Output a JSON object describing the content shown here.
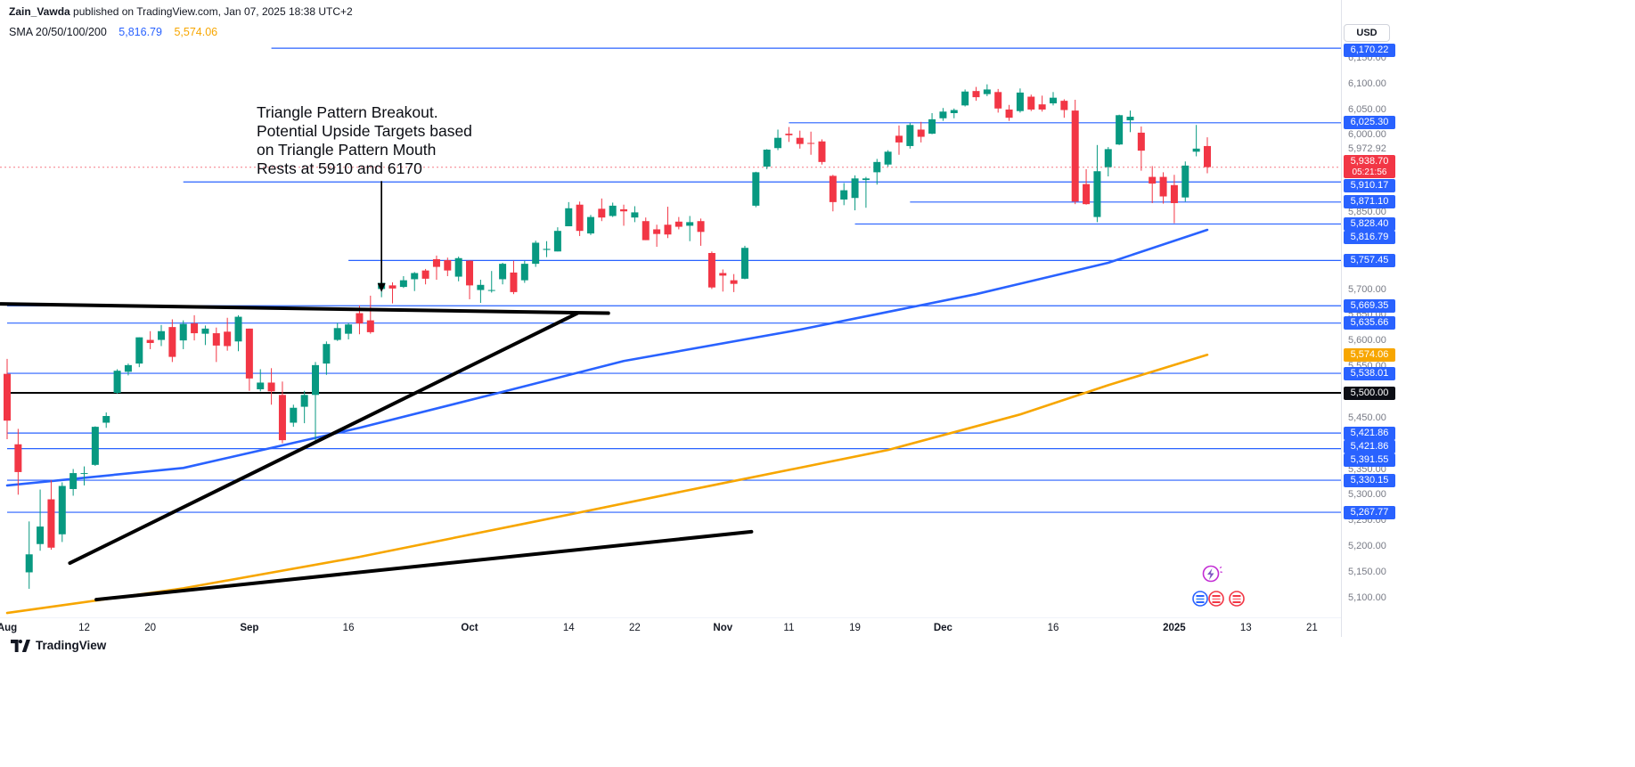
{
  "header": {
    "publisher_name": "Zain_Vawda",
    "publisher_rest": " published on TradingView.com, Jan 07, 2025 18:38 UTC+2",
    "currency_button": "USD"
  },
  "legend": {
    "indicator_label": "SMA 20/50/100/200",
    "value_blue": "5,816.79",
    "value_orange": "5,574.06"
  },
  "annotation": {
    "lines": [
      "Triangle Pattern Breakout.",
      "Potential Upside Targets based",
      "on Triangle Pattern Mouth",
      "Rests at 5910 and 6170"
    ]
  },
  "footer": {
    "brand": "TradingView"
  },
  "reactions": {
    "icons": [
      "lightning-reaction",
      "sticker-blue",
      "sticker-red-1",
      "sticker-red-2"
    ]
  },
  "chart_data": {
    "type": "candlestick",
    "currency": "USD",
    "ylim": [
      5086,
      6264
    ],
    "colors": {
      "up": "#089981",
      "down": "#f23645",
      "sma_fast": "#2962ff",
      "sma_slow": "#f7a600",
      "level": "#2962ff",
      "drawing": "#000000",
      "last_price": "#f23645"
    },
    "candles": [
      [
        5537,
        5566,
        5410,
        5446
      ],
      [
        5400,
        5430,
        5302,
        5346
      ],
      [
        5151,
        5250,
        5119,
        5186
      ],
      [
        5206,
        5312,
        5193,
        5240
      ],
      [
        5293,
        5330,
        5195,
        5199
      ],
      [
        5225,
        5326,
        5210,
        5319
      ],
      [
        5313,
        5352,
        5300,
        5344
      ],
      [
        5343,
        5357,
        5320,
        5344
      ],
      [
        5360,
        5435,
        5358,
        5434
      ],
      [
        5442,
        5462,
        5432,
        5455
      ],
      [
        5500,
        5546,
        5498,
        5543
      ],
      [
        5541,
        5557,
        5534,
        5554
      ],
      [
        5557,
        5608,
        5550,
        5608
      ],
      [
        5603,
        5620,
        5585,
        5597
      ],
      [
        5603,
        5632,
        5591,
        5620
      ],
      [
        5628,
        5643,
        5560,
        5570
      ],
      [
        5602,
        5641,
        5585,
        5634
      ],
      [
        5635,
        5651,
        5602,
        5616
      ],
      [
        5615,
        5631,
        5593,
        5625
      ],
      [
        5616,
        5627,
        5560,
        5592
      ],
      [
        5619,
        5646,
        5582,
        5591
      ],
      [
        5600,
        5651,
        5581,
        5648
      ],
      [
        5625,
        5625,
        5504,
        5528
      ],
      [
        5507,
        5546,
        5503,
        5520
      ],
      [
        5520,
        5548,
        5477,
        5503
      ],
      [
        5496,
        5522,
        5402,
        5408
      ],
      [
        5442,
        5477,
        5434,
        5471
      ],
      [
        5473,
        5504,
        5441,
        5496
      ],
      [
        5496,
        5560,
        5406,
        5554
      ],
      [
        5557,
        5600,
        5535,
        5595
      ],
      [
        5603,
        5636,
        5601,
        5626
      ],
      [
        5615,
        5636,
        5604,
        5633
      ],
      [
        5655,
        5670,
        5614,
        5635
      ],
      [
        5641,
        5689,
        5615,
        5618
      ],
      [
        5702,
        5733,
        5686,
        5714
      ],
      [
        5709,
        5715,
        5674,
        5703
      ],
      [
        5706,
        5727,
        5704,
        5719
      ],
      [
        5721,
        5735,
        5698,
        5733
      ],
      [
        5738,
        5741,
        5711,
        5722
      ],
      [
        5760,
        5767,
        5720,
        5745
      ],
      [
        5758,
        5763,
        5727,
        5738
      ],
      [
        5726,
        5765,
        5717,
        5762
      ],
      [
        5757,
        5758,
        5682,
        5709
      ],
      [
        5700,
        5720,
        5675,
        5710
      ],
      [
        5700,
        5737,
        5695,
        5700
      ],
      [
        5721,
        5753,
        5711,
        5751
      ],
      [
        5734,
        5757,
        5692,
        5696
      ],
      [
        5719,
        5757,
        5714,
        5751
      ],
      [
        5751,
        5796,
        5745,
        5792
      ],
      [
        5778,
        5795,
        5764,
        5780
      ],
      [
        5775,
        5822,
        5775,
        5815
      ],
      [
        5824,
        5871,
        5824,
        5859
      ],
      [
        5866,
        5872,
        5805,
        5815
      ],
      [
        5810,
        5846,
        5807,
        5842
      ],
      [
        5858,
        5878,
        5834,
        5841
      ],
      [
        5844,
        5870,
        5842,
        5864
      ],
      [
        5857,
        5866,
        5825,
        5853
      ],
      [
        5841,
        5863,
        5832,
        5851
      ],
      [
        5834,
        5841,
        5797,
        5797
      ],
      [
        5818,
        5827,
        5784,
        5809
      ],
      [
        5827,
        5862,
        5801,
        5808
      ],
      [
        5833,
        5842,
        5818,
        5823
      ],
      [
        5825,
        5844,
        5795,
        5832
      ],
      [
        5834,
        5839,
        5786,
        5813
      ],
      [
        5772,
        5775,
        5702,
        5705
      ],
      [
        5733,
        5740,
        5697,
        5728
      ],
      [
        5719,
        5731,
        5696,
        5712
      ],
      [
        5722,
        5786,
        5721,
        5782
      ],
      [
        5864,
        5930,
        5861,
        5929
      ],
      [
        5940,
        5974,
        5935,
        5973
      ],
      [
        5976,
        6012,
        5972,
        5996
      ],
      [
        6004,
        6017,
        5988,
        6001
      ],
      [
        5996,
        6010,
        5975,
        5984
      ],
      [
        5986,
        6008,
        5963,
        5985
      ],
      [
        5989,
        5993,
        5944,
        5949
      ],
      [
        5922,
        5924,
        5853,
        5871
      ],
      [
        5876,
        5908,
        5865,
        5894
      ],
      [
        5879,
        5923,
        5855,
        5917
      ],
      [
        5914,
        5920,
        5860,
        5917
      ],
      [
        5929,
        5955,
        5905,
        5949
      ],
      [
        5944,
        5972,
        5940,
        5969
      ],
      [
        6000,
        6020,
        5963,
        5987
      ],
      [
        5980,
        6025,
        5975,
        6021
      ],
      [
        6012,
        6027,
        5987,
        5998
      ],
      [
        6004,
        6044,
        6003,
        6032
      ],
      [
        6034,
        6054,
        6029,
        6047
      ],
      [
        6044,
        6053,
        6034,
        6050
      ],
      [
        6059,
        6090,
        6057,
        6086
      ],
      [
        6087,
        6095,
        6068,
        6075
      ],
      [
        6081,
        6100,
        6077,
        6090
      ],
      [
        6085,
        6091,
        6045,
        6053
      ],
      [
        6051,
        6060,
        6029,
        6035
      ],
      [
        6048,
        6092,
        6045,
        6084
      ],
      [
        6076,
        6080,
        6048,
        6051
      ],
      [
        6061,
        6078,
        6047,
        6051
      ],
      [
        6063,
        6085,
        6059,
        6074
      ],
      [
        6068,
        6071,
        6035,
        6050
      ],
      [
        6049,
        6070,
        5867,
        5872
      ],
      [
        5906,
        5935,
        5866,
        5867
      ],
      [
        5842,
        5982,
        5832,
        5931
      ],
      [
        5939,
        5978,
        5921,
        5974
      ],
      [
        5983,
        6041,
        5982,
        6040
      ],
      [
        6030,
        6049,
        6007,
        6037
      ],
      [
        6006,
        6018,
        5932,
        5971
      ],
      [
        5920,
        5941,
        5869,
        5907
      ],
      [
        5920,
        5929,
        5868,
        5882
      ],
      [
        5904,
        5924,
        5830,
        5869
      ],
      [
        5880,
        5950,
        5872,
        5942
      ],
      [
        5969,
        6021,
        5960,
        5975
      ],
      [
        5980,
        5997,
        5927,
        5939
      ]
    ],
    "sma_blue_points": [
      [
        0,
        5320
      ],
      [
        16,
        5354
      ],
      [
        32,
        5432
      ],
      [
        45,
        5502
      ],
      [
        56,
        5562
      ],
      [
        72,
        5623
      ],
      [
        88,
        5692
      ],
      [
        100,
        5753
      ],
      [
        109,
        5817
      ]
    ],
    "sma_orange_points": [
      [
        0,
        5072
      ],
      [
        16,
        5120
      ],
      [
        32,
        5181
      ],
      [
        48,
        5250
      ],
      [
        64,
        5320
      ],
      [
        80,
        5389
      ],
      [
        92,
        5458
      ],
      [
        100,
        5515
      ],
      [
        109,
        5574
      ]
    ],
    "levels": [
      {
        "price": 6170.22,
        "label": "6,170.22",
        "badge": "blue",
        "start_index": 24
      },
      {
        "price": 6025.3,
        "label": "6,025.30",
        "badge": "blue",
        "start_index": 71
      },
      {
        "price": 5910.17,
        "label": "5,910.17",
        "badge": "blue",
        "start_index": 16
      },
      {
        "price": 5871.1,
        "label": "5,871.10",
        "badge": "blue",
        "start_index": 82
      },
      {
        "price": 5828.4,
        "label": "5,828.40",
        "badge": "blue",
        "start_index": 77
      },
      {
        "price": 5757.45,
        "label": "5,757.45",
        "badge": "blue",
        "start_index": 31
      },
      {
        "price": 5669.35,
        "label": "5,669.35",
        "badge": "blue",
        "start_index": 0
      },
      {
        "price": 5635.66,
        "label": "5,635.66",
        "badge": "blue",
        "start_index": 0
      },
      {
        "price": 5538.01,
        "label": "5,538.01",
        "badge": "blue",
        "start_index": 0
      },
      {
        "price": 5500.0,
        "label": "5,500.00",
        "badge": "black",
        "start_index": 0,
        "line_color": "#000000",
        "width": 2
      },
      {
        "price": 5421.86,
        "label": "5,421.86",
        "badge": "blue",
        "start_index": 0
      },
      {
        "price": 5421.86,
        "label": "5,421.86",
        "badge": "blue",
        "start_index": 0,
        "duplicate_badge_only": true
      },
      {
        "price": 5391.55,
        "label": "5,391.55",
        "badge": "blue",
        "start_index": 0
      },
      {
        "price": 5330.15,
        "label": "5,330.15",
        "badge": "blue",
        "start_index": 0
      },
      {
        "price": 5267.77,
        "label": "5,267.77",
        "badge": "blue",
        "start_index": 0
      }
    ],
    "sma_badges": [
      {
        "price": 5816.79,
        "label": "5,816.79",
        "badge": "blue"
      },
      {
        "price": 5574.06,
        "label": "5,574.06",
        "badge": "orange"
      }
    ],
    "last_price_badge": {
      "price": 5938.7,
      "label": "5,938.70",
      "countdown": "05:21:56",
      "badge": "red"
    },
    "axis_ticks": [
      {
        "price": 6150,
        "label": "6,150.00"
      },
      {
        "price": 6100,
        "label": "6,100.00"
      },
      {
        "price": 6050,
        "label": "6,050.00"
      },
      {
        "price": 6000,
        "label": "6,000.00"
      },
      {
        "price": 5972.92,
        "label": "5,972.92"
      },
      {
        "price": 5950,
        "label": "5,950.00"
      },
      {
        "price": 5850,
        "label": "5,850.00"
      },
      {
        "price": 5700,
        "label": "5,700.00"
      },
      {
        "price": 5650,
        "label": "5,650.00"
      },
      {
        "price": 5600,
        "label": "5,600.00"
      },
      {
        "price": 5550,
        "label": "5,550.00"
      },
      {
        "price": 5450,
        "label": "5,450.00"
      },
      {
        "price": 5350,
        "label": "5,350.00"
      },
      {
        "price": 5300,
        "label": "5,300.00"
      },
      {
        "price": 5250,
        "label": "5,250.00"
      },
      {
        "price": 5200,
        "label": "5,200.00"
      },
      {
        "price": 5150,
        "label": "5,150.00"
      },
      {
        "price": 5100,
        "label": "5,100.00"
      }
    ],
    "time_labels": [
      {
        "i": 0,
        "label": "Aug",
        "major": true
      },
      {
        "i": 7,
        "label": "12"
      },
      {
        "i": 13,
        "label": "20"
      },
      {
        "i": 22,
        "label": "Sep",
        "major": true
      },
      {
        "i": 31,
        "label": "16"
      },
      {
        "i": 42,
        "label": "Oct",
        "major": true
      },
      {
        "i": 51,
        "label": "14"
      },
      {
        "i": 57,
        "label": "22"
      },
      {
        "i": 65,
        "label": "Nov",
        "major": true
      },
      {
        "i": 71,
        "label": "11"
      },
      {
        "i": 77,
        "label": "19"
      },
      {
        "i": 85,
        "label": "Dec",
        "major": true
      },
      {
        "i": 95,
        "label": "16"
      },
      {
        "i": 106,
        "label": "2025",
        "major": true
      },
      {
        "i": 112.5,
        "label": "13"
      },
      {
        "i": 118.5,
        "label": "21"
      }
    ],
    "trend_lines": [
      {
        "from": [
          -0.6,
          5673
        ],
        "to": [
          54.6,
          5655
        ],
        "width": 4
      },
      {
        "from": [
          5.7,
          5169
        ],
        "to": [
          51.8,
          5655
        ],
        "width": 4
      },
      {
        "from": [
          8.1,
          5098
        ],
        "to": [
          67.6,
          5230
        ],
        "width": 4
      }
    ],
    "arrow": {
      "index": 34,
      "from_price": 5912,
      "to_price": 5696
    }
  }
}
